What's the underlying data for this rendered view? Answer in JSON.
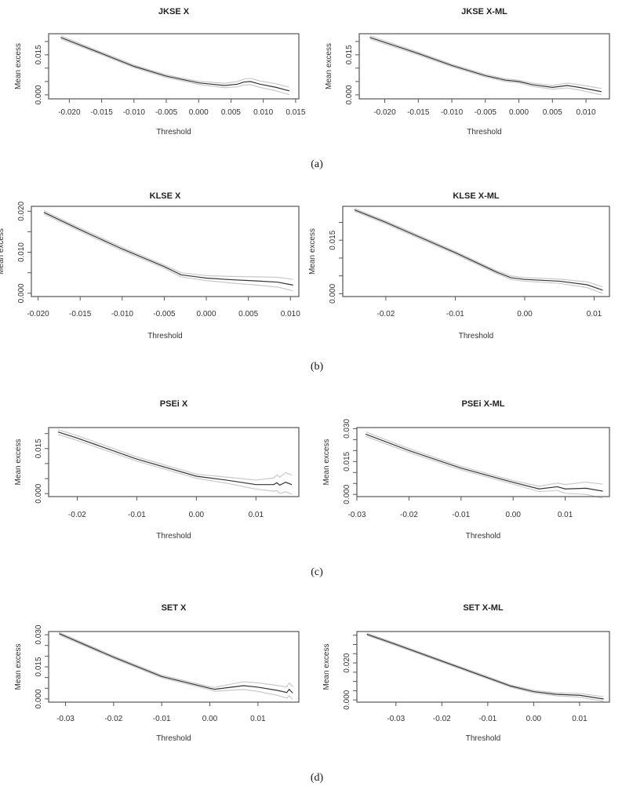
{
  "panel_labels": [
    "(a)",
    "(b)",
    "(c)",
    "(d)"
  ],
  "chart_data": [
    {
      "type": "line",
      "title": "JKSE X",
      "xlabel": "Threshold",
      "ylabel": "Mean excess",
      "xlim": [
        -0.0232,
        0.0155
      ],
      "ylim": [
        -0.0015,
        0.0229
      ],
      "xticks": [
        -0.02,
        -0.015,
        -0.01,
        -0.005,
        0.0,
        0.005,
        0.01,
        0.015
      ],
      "xtick_labels": [
        "-0.020",
        "-0.015",
        "-0.010",
        "-0.005",
        "0.000",
        "0.005",
        "0.010",
        "0.015"
      ],
      "yticks": [
        0,
        0.005,
        0.01,
        0.015,
        0.02
      ],
      "ytick_labels": [
        "0.000",
        "",
        "",
        "0.015",
        ""
      ],
      "points": [
        [
          -0.0213,
          0.0215,
          0.0006
        ],
        [
          -0.015,
          0.0155,
          0.0005
        ],
        [
          -0.01,
          0.0107,
          0.0005
        ],
        [
          -0.005,
          0.007,
          0.0005
        ],
        [
          -0.002,
          0.0055,
          0.0005
        ],
        [
          0,
          0.0045,
          0.0006
        ],
        [
          0.002,
          0.004,
          0.0007
        ],
        [
          0.004,
          0.0035,
          0.0008
        ],
        [
          0.006,
          0.004,
          0.001
        ],
        [
          0.007,
          0.0048,
          0.0011
        ],
        [
          0.008,
          0.005,
          0.0012
        ],
        [
          0.0095,
          0.004,
          0.0012
        ],
        [
          0.012,
          0.0028,
          0.0013
        ],
        [
          0.014,
          0.0015,
          0.0014
        ]
      ]
    },
    {
      "type": "line",
      "title": "JKSE X-ML",
      "xlabel": "Threshold",
      "ylabel": "Mean excess",
      "xlim": [
        -0.0238,
        0.0135
      ],
      "ylim": [
        -0.0015,
        0.0229
      ],
      "xticks": [
        -0.02,
        -0.015,
        -0.01,
        -0.005,
        0.0,
        0.005,
        0.01
      ],
      "xtick_labels": [
        "-0.020",
        "-0.015",
        "-0.010",
        "-0.005",
        "0.000",
        "0.005",
        "0.010"
      ],
      "yticks": [
        0,
        0.005,
        0.01,
        0.015,
        0.02
      ],
      "ytick_labels": [
        "0.000",
        "",
        "",
        "0.015",
        ""
      ],
      "points": [
        [
          -0.0222,
          0.0215,
          0.0006
        ],
        [
          -0.015,
          0.0155,
          0.0005
        ],
        [
          -0.01,
          0.011,
          0.0005
        ],
        [
          -0.005,
          0.0072,
          0.0005
        ],
        [
          -0.002,
          0.0055,
          0.0005
        ],
        [
          0,
          0.005,
          0.0005
        ],
        [
          0.002,
          0.0038,
          0.0006
        ],
        [
          0.005,
          0.0028,
          0.0007
        ],
        [
          0.0072,
          0.0035,
          0.0009
        ],
        [
          0.009,
          0.0028,
          0.001
        ],
        [
          0.0123,
          0.0012,
          0.0012
        ]
      ]
    },
    {
      "type": "line",
      "title": "KLSE X",
      "xlabel": "Threshold",
      "ylabel": "Mean excess",
      "xlim": [
        -0.0208,
        0.011
      ],
      "ylim": [
        -0.0008,
        0.0212
      ],
      "xticks": [
        -0.02,
        -0.015,
        -0.01,
        -0.005,
        0.0,
        0.005,
        0.01
      ],
      "xtick_labels": [
        "-0.020",
        "-0.015",
        "-0.010",
        "-0.005",
        "0.000",
        "0.005",
        "0.010"
      ],
      "yticks": [
        0,
        0.005,
        0.01,
        0.015,
        0.02
      ],
      "ytick_labels": [
        "0.000",
        "",
        "0.010",
        "",
        "0.020"
      ],
      "points": [
        [
          -0.0193,
          0.0197,
          0.0004
        ],
        [
          -0.015,
          0.0155,
          0.0004
        ],
        [
          -0.01,
          0.0108,
          0.0004
        ],
        [
          -0.005,
          0.0065,
          0.0004
        ],
        [
          -0.003,
          0.0045,
          0.0005
        ],
        [
          0,
          0.0037,
          0.0006
        ],
        [
          0.003,
          0.0033,
          0.0008
        ],
        [
          0.006,
          0.003,
          0.001
        ],
        [
          0.0085,
          0.0027,
          0.0012
        ],
        [
          0.0103,
          0.002,
          0.0014
        ]
      ]
    },
    {
      "type": "line",
      "title": "KLSE X-ML",
      "xlabel": "Threshold",
      "ylabel": "Mean excess",
      "xlim": [
        -0.0262,
        0.0122
      ],
      "ylim": [
        -0.0008,
        0.0245
      ],
      "xticks": [
        -0.02,
        -0.01,
        0.0,
        0.01
      ],
      "xtick_labels": [
        "-0.02",
        "-0.01",
        "0.00",
        "0.01"
      ],
      "yticks": [
        0,
        0.005,
        0.01,
        0.015,
        0.02
      ],
      "ytick_labels": [
        "0.000",
        "",
        "",
        "0.015",
        ""
      ],
      "points": [
        [
          -0.0245,
          0.0235,
          0.0004
        ],
        [
          -0.02,
          0.02,
          0.0004
        ],
        [
          -0.01,
          0.0115,
          0.0004
        ],
        [
          -0.004,
          0.006,
          0.0004
        ],
        [
          -0.002,
          0.0045,
          0.0005
        ],
        [
          0,
          0.004,
          0.0005
        ],
        [
          0.005,
          0.0035,
          0.0006
        ],
        [
          0.009,
          0.0025,
          0.0008
        ],
        [
          0.0112,
          0.001,
          0.0009
        ]
      ]
    },
    {
      "type": "line",
      "title": "PSEi X",
      "xlabel": "Threshold",
      "ylabel": "Mean excess",
      "xlim": [
        -0.0248,
        0.0172
      ],
      "ylim": [
        -0.001,
        0.022
      ],
      "xticks": [
        -0.02,
        -0.01,
        0.0,
        0.01
      ],
      "xtick_labels": [
        "-0.02",
        "-0.01",
        "0.00",
        "0.01"
      ],
      "yticks": [
        0,
        0.005,
        0.01,
        0.015,
        0.02
      ],
      "ytick_labels": [
        "0.000",
        "",
        "",
        "0.015",
        ""
      ],
      "points": [
        [
          -0.0232,
          0.0205,
          0.0008
        ],
        [
          -0.02,
          0.0185,
          0.0008
        ],
        [
          -0.01,
          0.0115,
          0.0007
        ],
        [
          0,
          0.0058,
          0.0007
        ],
        [
          0.005,
          0.0045,
          0.001
        ],
        [
          0.01,
          0.003,
          0.0015
        ],
        [
          0.013,
          0.003,
          0.0022
        ],
        [
          0.0135,
          0.0036,
          0.0026
        ],
        [
          0.014,
          0.0028,
          0.0027
        ],
        [
          0.015,
          0.0038,
          0.0032
        ],
        [
          0.016,
          0.003,
          0.0032
        ]
      ]
    },
    {
      "type": "line",
      "title": "PSEi X-ML",
      "xlabel": "Threshold",
      "ylabel": "Mean excess",
      "xlim": [
        -0.03,
        0.0185
      ],
      "ylim": [
        -0.001,
        0.0305
      ],
      "xticks": [
        -0.03,
        -0.02,
        -0.01,
        0.0,
        0.01
      ],
      "xtick_labels": [
        "-0.03",
        "-0.02",
        "-0.01",
        "0.00",
        "0.01"
      ],
      "yticks": [
        0,
        0.005,
        0.01,
        0.015,
        0.02,
        0.025,
        0.03
      ],
      "ytick_labels": [
        "0.000",
        "",
        "",
        "0.015",
        "",
        "",
        "0.030"
      ],
      "points": [
        [
          -0.0283,
          0.0275,
          0.001
        ],
        [
          -0.02,
          0.02,
          0.0009
        ],
        [
          -0.01,
          0.012,
          0.0008
        ],
        [
          0,
          0.0055,
          0.0008
        ],
        [
          0.005,
          0.0025,
          0.0012
        ],
        [
          0.0085,
          0.0035,
          0.0017
        ],
        [
          0.01,
          0.0025,
          0.002
        ],
        [
          0.014,
          0.0028,
          0.0028
        ],
        [
          0.0172,
          0.0015,
          0.0032
        ]
      ]
    },
    {
      "type": "line",
      "title": "SET X",
      "xlabel": "Threshold",
      "ylabel": "Mean excess",
      "xlim": [
        -0.0335,
        0.0185
      ],
      "ylim": [
        -0.0015,
        0.0315
      ],
      "xticks": [
        -0.03,
        -0.02,
        -0.01,
        0.0,
        0.01
      ],
      "xtick_labels": [
        "-0.03",
        "-0.02",
        "-0.01",
        "0.00",
        "0.01"
      ],
      "yticks": [
        0,
        0.005,
        0.01,
        0.015,
        0.02,
        0.025,
        0.03
      ],
      "ytick_labels": [
        "0.000",
        "",
        "",
        "0.015",
        "",
        "",
        "0.030"
      ],
      "points": [
        [
          -0.0313,
          0.0305,
          0.0006
        ],
        [
          -0.02,
          0.0195,
          0.0006
        ],
        [
          -0.01,
          0.0105,
          0.0006
        ],
        [
          0,
          0.005,
          0.0007
        ],
        [
          0.001,
          0.0045,
          0.0009
        ],
        [
          0.007,
          0.0062,
          0.0018
        ],
        [
          0.01,
          0.0055,
          0.002
        ],
        [
          0.014,
          0.004,
          0.0023
        ],
        [
          0.016,
          0.003,
          0.0026
        ],
        [
          0.0165,
          0.0045,
          0.003
        ],
        [
          0.0172,
          0.0028,
          0.003
        ]
      ]
    },
    {
      "type": "line",
      "title": "SET X-ML",
      "xlabel": "Threshold",
      "ylabel": "Mean excess",
      "xlim": [
        -0.0385,
        0.0165
      ],
      "ylim": [
        -0.0012,
        0.037
      ],
      "xticks": [
        -0.03,
        -0.02,
        -0.01,
        0.0,
        0.01
      ],
      "xtick_labels": [
        "-0.03",
        "-0.02",
        "-0.01",
        "0.00",
        "0.01"
      ],
      "yticks": [
        0,
        0.005,
        0.01,
        0.015,
        0.02,
        0.025,
        0.03,
        0.035
      ],
      "ytick_labels": [
        "0.000",
        "",
        "",
        "",
        "0.020",
        "",
        "",
        ""
      ],
      "points": [
        [
          -0.0363,
          0.0355,
          0.0006
        ],
        [
          -0.03,
          0.03,
          0.0006
        ],
        [
          -0.02,
          0.021,
          0.0006
        ],
        [
          -0.01,
          0.012,
          0.0006
        ],
        [
          -0.005,
          0.0075,
          0.0006
        ],
        [
          0,
          0.0045,
          0.0007
        ],
        [
          0.005,
          0.003,
          0.0008
        ],
        [
          0.01,
          0.0025,
          0.001
        ],
        [
          0.0152,
          0.0005,
          0.0012
        ]
      ]
    }
  ]
}
